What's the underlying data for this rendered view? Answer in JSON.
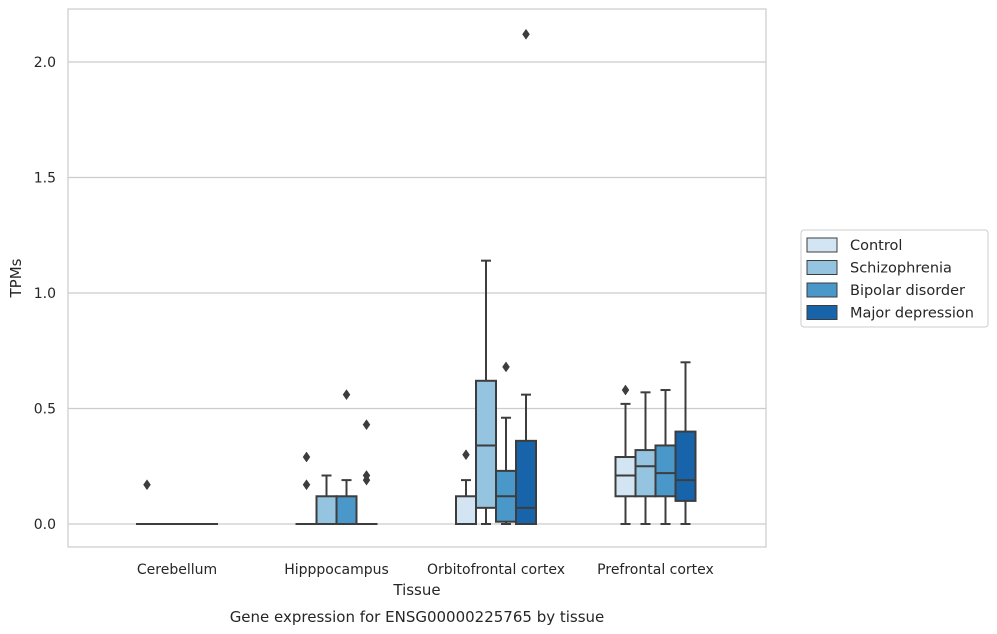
{
  "chart_data": {
    "type": "box",
    "title": "",
    "caption": "Gene expression for ENSG00000225765 by tissue",
    "xlabel": "Tissue",
    "ylabel": "TPMs",
    "ylim": [
      -0.1,
      2.25
    ],
    "yticks": [
      0.0,
      0.5,
      1.0,
      1.5,
      2.0
    ],
    "ytick_labels": [
      "0.0",
      "0.5",
      "1.0",
      "1.5",
      "2.0"
    ],
    "grid": "horizontal",
    "legend_position": "right",
    "categories": [
      "Cerebellum",
      "Hipppocampus",
      "Orbitofrontal cortex",
      "Prefrontal cortex"
    ],
    "series": [
      {
        "name": "Control",
        "color": "#d3e4f3",
        "boxes": [
          {
            "q1": 0.0,
            "median": 0.0,
            "q3": 0.0,
            "whislo": 0.0,
            "whishi": 0.0,
            "fliers": [
              0.17
            ]
          },
          {
            "q1": 0.0,
            "median": 0.0,
            "q3": 0.0,
            "whislo": 0.0,
            "whishi": 0.0,
            "fliers": [
              0.17,
              0.29
            ]
          },
          {
            "q1": 0.0,
            "median": 0.0,
            "q3": 0.12,
            "whislo": 0.0,
            "whishi": 0.19,
            "fliers": [
              0.3
            ]
          },
          {
            "q1": 0.12,
            "median": 0.21,
            "q3": 0.29,
            "whislo": 0.0,
            "whishi": 0.52,
            "fliers": [
              0.58
            ]
          }
        ]
      },
      {
        "name": "Schizophrenia",
        "color": "#94c4df",
        "boxes": [
          {
            "q1": 0.0,
            "median": 0.0,
            "q3": 0.0,
            "whislo": 0.0,
            "whishi": 0.0,
            "fliers": []
          },
          {
            "q1": 0.0,
            "median": 0.0,
            "q3": 0.12,
            "whislo": 0.0,
            "whishi": 0.21,
            "fliers": []
          },
          {
            "q1": 0.07,
            "median": 0.34,
            "q3": 0.62,
            "whislo": 0.0,
            "whishi": 1.14,
            "fliers": []
          },
          {
            "q1": 0.12,
            "median": 0.25,
            "q3": 0.32,
            "whislo": 0.0,
            "whishi": 0.57,
            "fliers": []
          }
        ]
      },
      {
        "name": "Bipolar disorder",
        "color": "#4a98c9",
        "boxes": [
          {
            "q1": 0.0,
            "median": 0.0,
            "q3": 0.0,
            "whislo": 0.0,
            "whishi": 0.0,
            "fliers": []
          },
          {
            "q1": 0.0,
            "median": 0.0,
            "q3": 0.12,
            "whislo": 0.0,
            "whishi": 0.19,
            "fliers": [
              0.56
            ]
          },
          {
            "q1": 0.01,
            "median": 0.12,
            "q3": 0.23,
            "whislo": 0.0,
            "whishi": 0.46,
            "fliers": [
              0.68
            ]
          },
          {
            "q1": 0.12,
            "median": 0.22,
            "q3": 0.34,
            "whislo": 0.0,
            "whishi": 0.58,
            "fliers": []
          }
        ]
      },
      {
        "name": "Major depression",
        "color": "#1764ab",
        "boxes": [
          {
            "q1": 0.0,
            "median": 0.0,
            "q3": 0.0,
            "whislo": 0.0,
            "whishi": 0.0,
            "fliers": []
          },
          {
            "q1": 0.0,
            "median": 0.0,
            "q3": 0.0,
            "whislo": 0.0,
            "whishi": 0.0,
            "fliers": [
              0.19,
              0.21,
              0.43
            ]
          },
          {
            "q1": 0.0,
            "median": 0.07,
            "q3": 0.36,
            "whislo": 0.0,
            "whishi": 0.56,
            "fliers": [
              2.12
            ]
          },
          {
            "q1": 0.1,
            "median": 0.19,
            "q3": 0.4,
            "whislo": 0.0,
            "whishi": 0.7,
            "fliers": []
          }
        ]
      }
    ]
  }
}
